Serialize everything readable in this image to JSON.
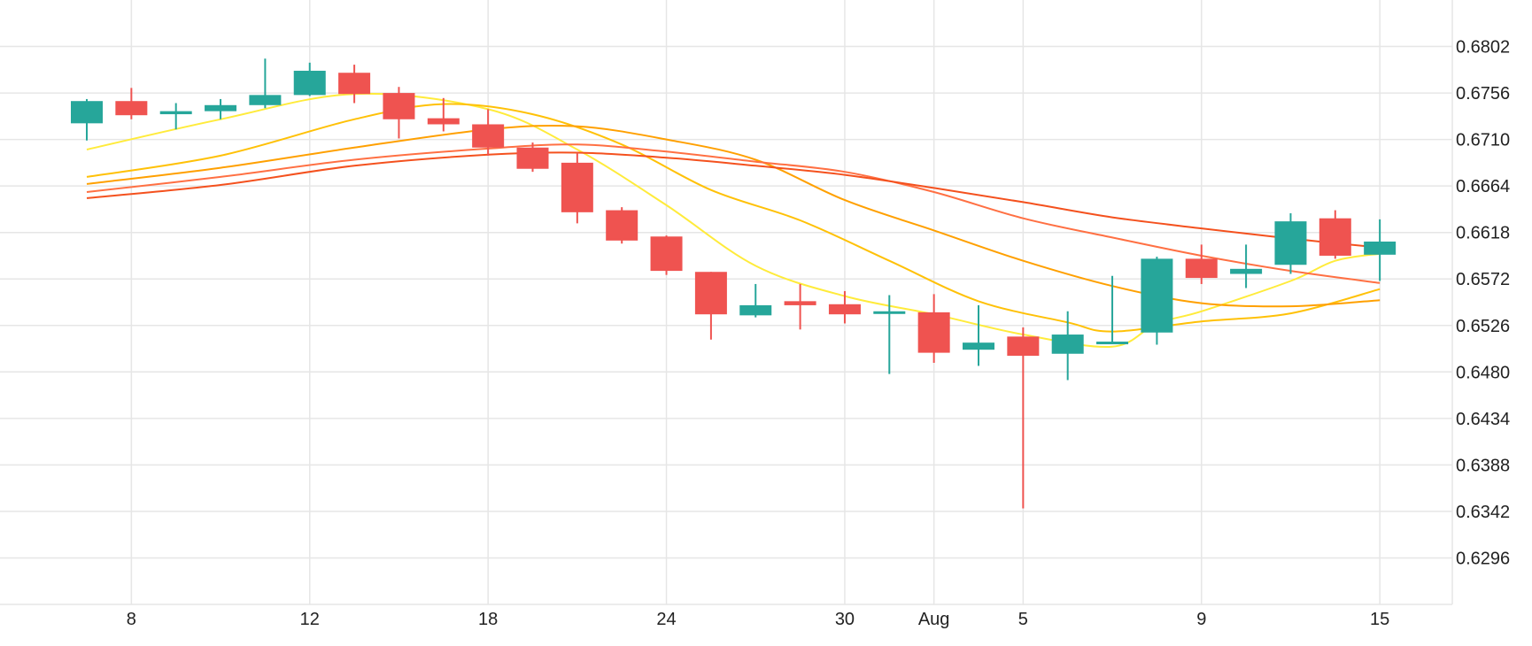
{
  "chart_data": {
    "type": "candlestick",
    "title": "",
    "xlabel": "",
    "ylabel": "",
    "ylim": [
      0.625,
      0.6848
    ],
    "grid": true,
    "colors": {
      "up": "#26a69a",
      "down": "#ef5350",
      "grid": "#e6e6e6",
      "text": "#222222"
    },
    "y_ticks": [
      "0.6802",
      "0.6756",
      "0.6710",
      "0.6664",
      "0.6618",
      "0.6572",
      "0.6526",
      "0.6480",
      "0.6434",
      "0.6388",
      "0.6342",
      "0.6296"
    ],
    "x_ticks": [
      {
        "label": "8",
        "index": 1
      },
      {
        "label": "12",
        "index": 5
      },
      {
        "label": "18",
        "index": 9
      },
      {
        "label": "24",
        "index": 13
      },
      {
        "label": "30",
        "index": 17
      },
      {
        "label": "Aug",
        "index": 19
      },
      {
        "label": "5",
        "index": 21
      },
      {
        "label": "9",
        "index": 25
      },
      {
        "label": "15",
        "index": 29
      }
    ],
    "candles": [
      {
        "o": 0.6726,
        "h": 0.675,
        "l": 0.6709,
        "c": 0.6748
      },
      {
        "o": 0.6748,
        "h": 0.6761,
        "l": 0.673,
        "c": 0.6734
      },
      {
        "o": 0.6735,
        "h": 0.6746,
        "l": 0.672,
        "c": 0.6738
      },
      {
        "o": 0.6738,
        "h": 0.675,
        "l": 0.673,
        "c": 0.6744
      },
      {
        "o": 0.6744,
        "h": 0.679,
        "l": 0.6741,
        "c": 0.6754
      },
      {
        "o": 0.6754,
        "h": 0.6786,
        "l": 0.6753,
        "c": 0.6778
      },
      {
        "o": 0.6776,
        "h": 0.6784,
        "l": 0.6746,
        "c": 0.6755
      },
      {
        "o": 0.6756,
        "h": 0.6762,
        "l": 0.6711,
        "c": 0.673
      },
      {
        "o": 0.6731,
        "h": 0.6751,
        "l": 0.6718,
        "c": 0.6725
      },
      {
        "o": 0.6725,
        "h": 0.674,
        "l": 0.6694,
        "c": 0.6702
      },
      {
        "o": 0.6702,
        "h": 0.6707,
        "l": 0.6678,
        "c": 0.6681
      },
      {
        "o": 0.6687,
        "h": 0.6697,
        "l": 0.6627,
        "c": 0.6638
      },
      {
        "o": 0.664,
        "h": 0.6643,
        "l": 0.6607,
        "c": 0.661
      },
      {
        "o": 0.6614,
        "h": 0.6615,
        "l": 0.6576,
        "c": 0.658
      },
      {
        "o": 0.6579,
        "h": 0.6579,
        "l": 0.6512,
        "c": 0.6537
      },
      {
        "o": 0.6536,
        "h": 0.6567,
        "l": 0.6534,
        "c": 0.6546
      },
      {
        "o": 0.655,
        "h": 0.6567,
        "l": 0.6522,
        "c": 0.6546
      },
      {
        "o": 0.6547,
        "h": 0.656,
        "l": 0.6528,
        "c": 0.6537
      },
      {
        "o": 0.6538,
        "h": 0.6556,
        "l": 0.6478,
        "c": 0.654
      },
      {
        "o": 0.6539,
        "h": 0.6557,
        "l": 0.6489,
        "c": 0.6499
      },
      {
        "o": 0.6502,
        "h": 0.6546,
        "l": 0.6486,
        "c": 0.6509
      },
      {
        "o": 0.6515,
        "h": 0.6524,
        "l": 0.6345,
        "c": 0.6496
      },
      {
        "o": 0.6498,
        "h": 0.654,
        "l": 0.6472,
        "c": 0.6517
      },
      {
        "o": 0.6508,
        "h": 0.6575,
        "l": 0.6509,
        "c": 0.651
      },
      {
        "o": 0.6519,
        "h": 0.6594,
        "l": 0.6507,
        "c": 0.6592
      },
      {
        "o": 0.6592,
        "h": 0.6606,
        "l": 0.6567,
        "c": 0.6573
      },
      {
        "o": 0.6577,
        "h": 0.6606,
        "l": 0.6563,
        "c": 0.6582
      },
      {
        "o": 0.6586,
        "h": 0.6637,
        "l": 0.6577,
        "c": 0.6629
      },
      {
        "o": 0.6632,
        "h": 0.664,
        "l": 0.6592,
        "c": 0.6595
      },
      {
        "o": 0.6596,
        "h": 0.6631,
        "l": 0.657,
        "c": 0.6609
      }
    ],
    "moving_averages": [
      {
        "color": "#ffeb3b",
        "points": [
          [
            0,
            0.67
          ],
          [
            3,
            0.673
          ],
          [
            6,
            0.6755
          ],
          [
            9,
            0.674
          ],
          [
            11,
            0.67
          ],
          [
            13,
            0.6645
          ],
          [
            15,
            0.6585
          ],
          [
            17,
            0.6555
          ],
          [
            19,
            0.6537
          ],
          [
            21,
            0.6517
          ],
          [
            23,
            0.6505
          ],
          [
            24,
            0.6528
          ],
          [
            25,
            0.654
          ],
          [
            27,
            0.657
          ],
          [
            28,
            0.659
          ],
          [
            29,
            0.6597
          ]
        ]
      },
      {
        "color": "#ffc107",
        "points": [
          [
            0,
            0.6673
          ],
          [
            3,
            0.6694
          ],
          [
            6,
            0.673
          ],
          [
            8,
            0.6745
          ],
          [
            10,
            0.6735
          ],
          [
            12,
            0.6705
          ],
          [
            14,
            0.666
          ],
          [
            16,
            0.663
          ],
          [
            18,
            0.659
          ],
          [
            20,
            0.655
          ],
          [
            22,
            0.6529
          ],
          [
            23,
            0.652
          ],
          [
            25,
            0.653
          ],
          [
            27,
            0.6538
          ],
          [
            29,
            0.6562
          ]
        ]
      },
      {
        "color": "#ffa000",
        "points": [
          [
            0,
            0.6666
          ],
          [
            3,
            0.6682
          ],
          [
            6,
            0.6702
          ],
          [
            9,
            0.672
          ],
          [
            11,
            0.6723
          ],
          [
            13,
            0.671
          ],
          [
            15,
            0.669
          ],
          [
            17,
            0.665
          ],
          [
            19,
            0.662
          ],
          [
            21,
            0.659
          ],
          [
            23,
            0.6565
          ],
          [
            25,
            0.6548
          ],
          [
            27,
            0.6545
          ],
          [
            29,
            0.6551
          ]
        ]
      },
      {
        "color": "#ff7043",
        "points": [
          [
            0,
            0.6658
          ],
          [
            3,
            0.6673
          ],
          [
            6,
            0.669
          ],
          [
            9,
            0.6701
          ],
          [
            11,
            0.6705
          ],
          [
            13,
            0.6698
          ],
          [
            15,
            0.6688
          ],
          [
            17,
            0.6678
          ],
          [
            19,
            0.6658
          ],
          [
            21,
            0.6632
          ],
          [
            23,
            0.6613
          ],
          [
            25,
            0.6595
          ],
          [
            27,
            0.658
          ],
          [
            29,
            0.6568
          ]
        ]
      },
      {
        "color": "#f4511e",
        "points": [
          [
            0,
            0.6652
          ],
          [
            3,
            0.6665
          ],
          [
            6,
            0.6684
          ],
          [
            9,
            0.6695
          ],
          [
            11,
            0.6697
          ],
          [
            13,
            0.6692
          ],
          [
            15,
            0.6684
          ],
          [
            17,
            0.6675
          ],
          [
            19,
            0.6662
          ],
          [
            21,
            0.6648
          ],
          [
            23,
            0.6633
          ],
          [
            25,
            0.6622
          ],
          [
            27,
            0.6612
          ],
          [
            29,
            0.6603
          ]
        ]
      }
    ]
  }
}
